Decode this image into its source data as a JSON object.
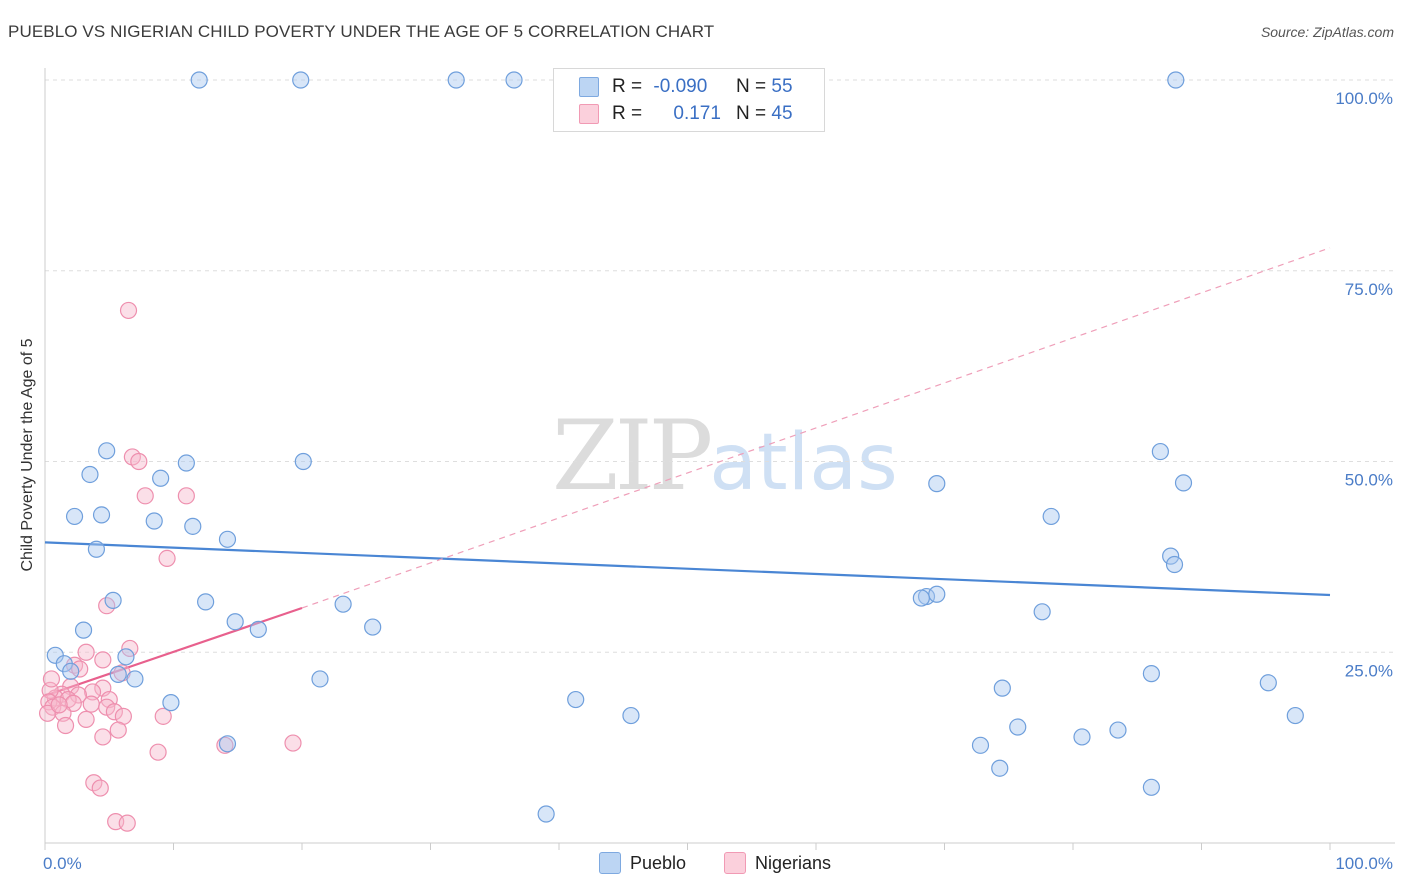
{
  "title": "PUEBLO VS NIGERIAN CHILD POVERTY UNDER THE AGE OF 5 CORRELATION CHART",
  "source": "Source: ZipAtlas.com",
  "watermark": {
    "zip": "ZIP",
    "atlas": "atlas"
  },
  "legend": {
    "rows": [
      {
        "r_label": "R =",
        "r_value": "-0.090",
        "n_label": "N =",
        "n_value": "55",
        "color": "#a8c8f0"
      },
      {
        "r_label": "R =",
        "r_value": "0.171",
        "n_label": "N =",
        "n_value": "45",
        "color": "#f7b8cb"
      }
    ]
  },
  "bottom_legend": {
    "pueblo": "Pueblo",
    "nigerians": "Nigerians"
  },
  "chart_data": {
    "type": "scatter",
    "title": "PUEBLO VS NIGERIAN CHILD POVERTY UNDER THE AGE OF 5 CORRELATION CHART",
    "xlabel": "",
    "ylabel": "Child Poverty Under the Age of 5",
    "xlim": [
      0,
      100
    ],
    "ylim": [
      0,
      100
    ],
    "x_tick_labels": [
      "0.0%",
      "100.0%"
    ],
    "y_tick_labels": [
      "100.0%",
      "75.0%",
      "50.0%",
      "25.0%"
    ],
    "y_tick_values": [
      100,
      75,
      50,
      25
    ],
    "grid": true,
    "colors": {
      "pueblo": "#4a86d4",
      "pueblo_fill": "#a8c8f0",
      "nigerians": "#e8608d",
      "nigerians_fill": "#f7b8cb",
      "axis_text": "#4a7cc7"
    },
    "series": [
      {
        "name": "Pueblo",
        "trend": {
          "x": [
            0,
            100
          ],
          "y": [
            39.4,
            32.5
          ],
          "style": "solid"
        },
        "points": [
          [
            12,
            100
          ],
          [
            19.9,
            100
          ],
          [
            32,
            100
          ],
          [
            36.5,
            100
          ],
          [
            88,
            100
          ],
          [
            3.5,
            48.3
          ],
          [
            4.8,
            51.4
          ],
          [
            9,
            47.8
          ],
          [
            11,
            49.8
          ],
          [
            20.1,
            50
          ],
          [
            2.3,
            42.8
          ],
          [
            4.4,
            43
          ],
          [
            8.5,
            42.2
          ],
          [
            11.5,
            41.5
          ],
          [
            14.2,
            39.8
          ],
          [
            4,
            38.5
          ],
          [
            0.8,
            24.6
          ],
          [
            1.5,
            23.5
          ],
          [
            2,
            22.5
          ],
          [
            3,
            27.9
          ],
          [
            5.3,
            31.8
          ],
          [
            12.5,
            31.6
          ],
          [
            14.8,
            29
          ],
          [
            16.6,
            28
          ],
          [
            23.2,
            31.3
          ],
          [
            25.5,
            28.3
          ],
          [
            6.3,
            24.4
          ],
          [
            7,
            21.5
          ],
          [
            5.7,
            22.1
          ],
          [
            9.8,
            18.4
          ],
          [
            21.4,
            21.5
          ],
          [
            14.2,
            13
          ],
          [
            41.3,
            18.8
          ],
          [
            45.6,
            16.7
          ],
          [
            39,
            3.8
          ],
          [
            68.6,
            32.3
          ],
          [
            69.4,
            32.6
          ],
          [
            68.2,
            32.1
          ],
          [
            86.8,
            51.3
          ],
          [
            88.6,
            47.2
          ],
          [
            69.4,
            47.1
          ],
          [
            78.3,
            42.8
          ],
          [
            87.6,
            37.6
          ],
          [
            77.6,
            30.3
          ],
          [
            87.9,
            36.5
          ],
          [
            74.5,
            20.3
          ],
          [
            86.1,
            22.2
          ],
          [
            95.2,
            21
          ],
          [
            97.3,
            16.7
          ],
          [
            75.7,
            15.2
          ],
          [
            80.7,
            13.9
          ],
          [
            72.8,
            12.8
          ],
          [
            74.3,
            9.8
          ],
          [
            86.1,
            7.3
          ],
          [
            83.5,
            14.8
          ]
        ]
      },
      {
        "name": "Nigerians",
        "trend": {
          "x": [
            0,
            20
          ],
          "y": [
            19.3,
            30.8
          ],
          "style": "solid",
          "extended": {
            "x": [
              20,
              100
            ],
            "y": [
              30.8,
              78
            ]
          },
          "extended_style": "dashed"
        },
        "points": [
          [
            6.5,
            69.8
          ],
          [
            6.8,
            50.6
          ],
          [
            7.3,
            50
          ],
          [
            7.8,
            45.5
          ],
          [
            11,
            45.5
          ],
          [
            9.5,
            37.3
          ],
          [
            4.8,
            31.1
          ],
          [
            6.6,
            25.5
          ],
          [
            3.2,
            25
          ],
          [
            4.5,
            24
          ],
          [
            2.3,
            23.3
          ],
          [
            2.7,
            22.8
          ],
          [
            4.5,
            20.3
          ],
          [
            3.7,
            19.8
          ],
          [
            5,
            18.8
          ],
          [
            2,
            20.5
          ],
          [
            2.6,
            19.4
          ],
          [
            1.3,
            19.5
          ],
          [
            0.8,
            19
          ],
          [
            0.4,
            20
          ],
          [
            0.3,
            18.5
          ],
          [
            0.6,
            17.8
          ],
          [
            0.2,
            17
          ],
          [
            1.8,
            18.8
          ],
          [
            2.2,
            18.3
          ],
          [
            3.6,
            18.2
          ],
          [
            1.4,
            17
          ],
          [
            4.8,
            17.8
          ],
          [
            5.4,
            17.2
          ],
          [
            6.1,
            16.6
          ],
          [
            3.2,
            16.2
          ],
          [
            1.6,
            15.4
          ],
          [
            5.7,
            14.8
          ],
          [
            4.5,
            13.9
          ],
          [
            9.2,
            16.6
          ],
          [
            8.8,
            11.9
          ],
          [
            14,
            12.8
          ],
          [
            19.3,
            13.1
          ],
          [
            0.5,
            21.5
          ],
          [
            1.1,
            18.1
          ],
          [
            3.8,
            7.9
          ],
          [
            4.3,
            7.2
          ],
          [
            5.5,
            2.8
          ],
          [
            6.4,
            2.6
          ],
          [
            6,
            22.3
          ]
        ]
      }
    ]
  }
}
